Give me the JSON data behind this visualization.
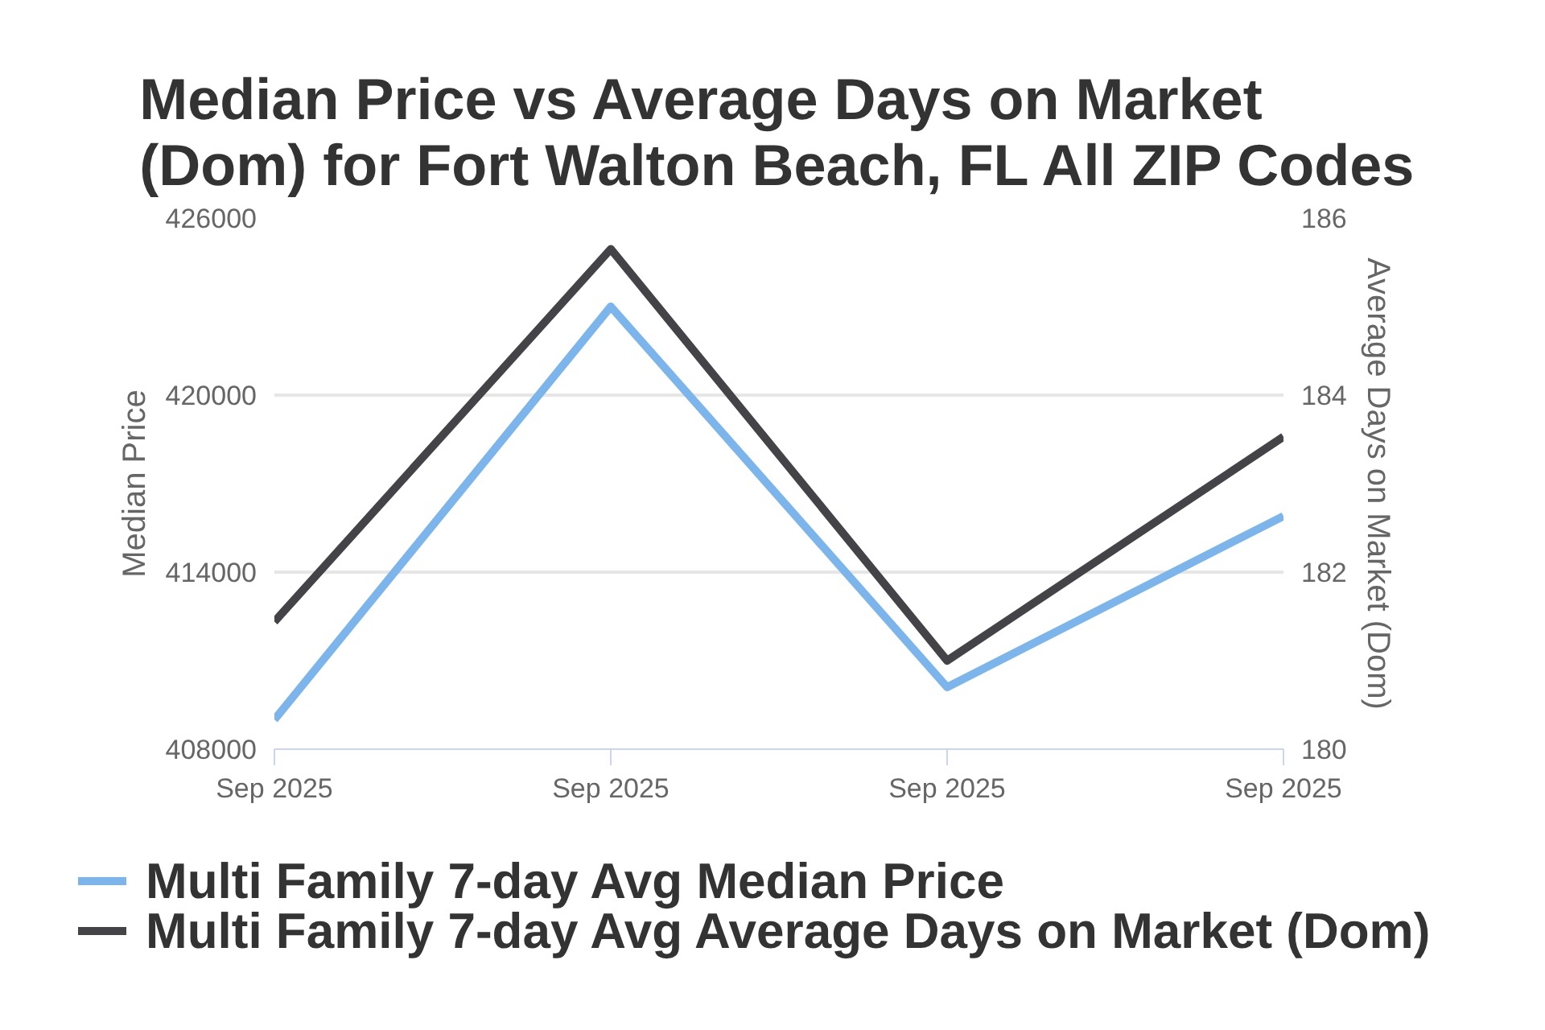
{
  "chart_data": {
    "type": "line",
    "title": "Median Price vs Average Days on Market (Dom) for Fort Walton Beach, FL All ZIP Codes",
    "categories": [
      "Sep 2025",
      "Sep 2025",
      "Sep 2025",
      "Sep 2025"
    ],
    "series": [
      {
        "name": "Multi Family 7-day Avg Median Price",
        "color": "#7cb5ec",
        "values": [
          409000,
          423000,
          410100,
          415900
        ]
      },
      {
        "name": "Multi Family 7-day Avg Average Days on Market (Dom)",
        "color": "#434348",
        "values": [
          181.44,
          185.65,
          181.0,
          183.53
        ],
        "axis": "y2"
      }
    ],
    "ylabel": "Median Price",
    "y2label": "Average Days on Market (Dom)",
    "ylim": [
      408000,
      426000
    ],
    "yticks": [
      408000,
      414000,
      420000,
      426000
    ],
    "y2lim": [
      180,
      186
    ],
    "y2ticks": [
      180,
      182,
      184,
      186
    ],
    "grid": "y",
    "legend": "bottom",
    "marker": "none",
    "line_style": "solid"
  }
}
